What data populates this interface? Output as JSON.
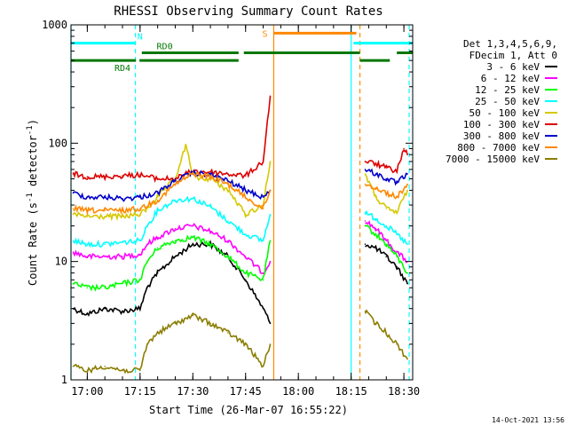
{
  "chart_data": {
    "type": "line",
    "title": "RHESSI Observing Summary Count Rates",
    "xlabel": "Start Time (26-Mar-07 16:55:22)",
    "ylabel_main": "Count Rate (s",
    "ylabel_sup1": "-1",
    "ylabel_mid": " detector",
    "ylabel_sup2": "-1",
    "ylabel_end": ")",
    "footer": "14-Oct-2021 13:56",
    "y_scale": "log",
    "ylim": [
      1,
      1000
    ],
    "xlim": [
      "16:55:22",
      "18:32:30"
    ],
    "x_ticks": [
      "17:00",
      "17:15",
      "17:30",
      "17:45",
      "18:00",
      "18:15",
      "18:30"
    ],
    "y_ticks": [
      "1",
      "10",
      "100",
      "1000"
    ],
    "legend": {
      "header": [
        "Det 1,3,4,5,6,9,",
        "FDecim 1, Att 0"
      ],
      "entries": [
        {
          "label": "3 - 6 keV",
          "color": "#000000"
        },
        {
          "label": "6 - 12 keV",
          "color": "#ff00ff"
        },
        {
          "label": "12 - 25 keV",
          "color": "#00ff00"
        },
        {
          "label": "25 - 50 keV",
          "color": "#00ffff"
        },
        {
          "label": "50 - 100 keV",
          "color": "#d6c800"
        },
        {
          "label": "100 - 300 keV",
          "color": "#dd0000"
        },
        {
          "label": "300 - 800 keV",
          "color": "#0000cc"
        },
        {
          "label": "800 - 7000 keV",
          "color": "#ff8800"
        },
        {
          "label": "7000 - 15000 keV",
          "color": "#8b7d00"
        }
      ]
    },
    "flags": [
      {
        "label": "N",
        "color": "#00ffff",
        "level": 700,
        "intervals": [
          [
            "16:55:22",
            "17:13:40"
          ],
          [
            "18:15:40",
            "18:32:30"
          ]
        ]
      },
      {
        "label": "RD0",
        "color": "#007700",
        "level": 580,
        "intervals": [
          [
            "17:15:30",
            "17:43:00"
          ],
          [
            "17:44:30",
            "18:17:30"
          ],
          [
            "18:28:00",
            "18:32:30"
          ]
        ]
      },
      {
        "label": "RD4",
        "color": "#007700",
        "level": 500,
        "intervals": [
          [
            "16:55:22",
            "17:13:50"
          ],
          [
            "17:14:50",
            "17:43:00"
          ],
          [
            "18:17:30",
            "18:26:00"
          ]
        ]
      },
      {
        "label": "S",
        "color": "#ff8800",
        "level": 850,
        "intervals": [
          [
            "17:53:00",
            "18:16:30"
          ]
        ]
      }
    ],
    "events": [
      {
        "time": "16:55:22",
        "color": "#00ffff",
        "style": "solid"
      },
      {
        "time": "17:13:40",
        "color": "#00ffff",
        "style": "dashed"
      },
      {
        "time": "17:53:00",
        "color": "#ff8800",
        "style": "solid"
      },
      {
        "time": "18:15:00",
        "color": "#00ffff",
        "style": "solid"
      },
      {
        "time": "18:17:30",
        "color": "#ff8800",
        "style": "dashed"
      },
      {
        "time": "18:31:30",
        "color": "#00ffff",
        "style": "dashed"
      }
    ],
    "data_gap": [
      "17:53:00",
      "18:17:30"
    ],
    "series": [
      {
        "name": "3 - 6 keV",
        "color": "#000000",
        "x": [
          "16:56",
          "17:00",
          "17:05",
          "17:10",
          "17:15",
          "17:17",
          "17:20",
          "17:25",
          "17:30",
          "17:35",
          "17:40",
          "17:45",
          "17:50",
          "17:52",
          "18:19",
          "18:22",
          "18:25",
          "18:28",
          "18:31"
        ],
        "y": [
          4,
          3.6,
          4,
          3.8,
          4,
          6,
          8,
          11,
          14,
          14,
          11,
          7,
          4,
          3,
          14,
          13,
          11,
          9,
          6.5
        ]
      },
      {
        "name": "6 - 12 keV",
        "color": "#ff00ff",
        "x": [
          "16:56",
          "17:00",
          "17:05",
          "17:10",
          "17:15",
          "17:17",
          "17:20",
          "17:25",
          "17:30",
          "17:35",
          "17:40",
          "17:45",
          "17:50",
          "17:52",
          "18:19",
          "18:22",
          "18:25",
          "18:28",
          "18:31"
        ],
        "y": [
          12,
          11,
          11,
          11,
          11.5,
          14,
          16,
          19,
          20,
          18,
          15,
          11,
          8,
          10,
          22,
          19,
          15,
          12,
          10
        ]
      },
      {
        "name": "12 - 25 keV",
        "color": "#00ff00",
        "x": [
          "16:56",
          "17:00",
          "17:05",
          "17:10",
          "17:15",
          "17:17",
          "17:20",
          "17:25",
          "17:30",
          "17:35",
          "17:40",
          "17:45",
          "17:50",
          "17:52",
          "18:19",
          "18:22",
          "18:25",
          "18:28",
          "18:31"
        ],
        "y": [
          6.5,
          6,
          6,
          6.5,
          7,
          10,
          13,
          15,
          16,
          14,
          11,
          8,
          7,
          15,
          20,
          17,
          14,
          11,
          8
        ]
      },
      {
        "name": "25 - 50 keV",
        "color": "#00ffff",
        "x": [
          "16:56",
          "17:00",
          "17:05",
          "17:10",
          "17:15",
          "17:17",
          "17:20",
          "17:25",
          "17:30",
          "17:35",
          "17:40",
          "17:45",
          "17:50",
          "17:52",
          "18:19",
          "18:22",
          "18:25",
          "18:28",
          "18:31"
        ],
        "y": [
          15,
          14,
          14,
          14.5,
          15,
          20,
          27,
          33,
          34,
          29,
          22,
          17,
          15,
          25,
          26,
          23,
          20,
          17,
          14
        ]
      },
      {
        "name": "50 - 100 keV",
        "color": "#d6c800",
        "x": [
          "16:56",
          "17:00",
          "17:05",
          "17:10",
          "17:15",
          "17:17",
          "17:20",
          "17:25",
          "17:28",
          "17:30",
          "17:32",
          "17:35",
          "17:40",
          "17:45",
          "17:50",
          "17:52",
          "18:19",
          "18:22",
          "18:25",
          "18:28",
          "18:31"
        ],
        "y": [
          25,
          24,
          24,
          24,
          25,
          28,
          35,
          50,
          95,
          55,
          50,
          50,
          40,
          25,
          30,
          70,
          55,
          35,
          28,
          26,
          40
        ]
      },
      {
        "name": "100 - 300 keV",
        "color": "#dd0000",
        "x": [
          "16:56",
          "17:00",
          "17:05",
          "17:10",
          "17:15",
          "17:20",
          "17:25",
          "17:30",
          "17:35",
          "17:40",
          "17:45",
          "17:50",
          "17:52",
          "18:19",
          "18:22",
          "18:25",
          "18:28",
          "18:30",
          "18:31"
        ],
        "y": [
          55,
          52,
          52,
          53,
          54,
          50,
          50,
          58,
          57,
          55,
          53,
          70,
          250,
          70,
          67,
          62,
          58,
          90,
          80
        ]
      },
      {
        "name": "300 - 800 keV",
        "color": "#0000cc",
        "x": [
          "16:56",
          "17:00",
          "17:05",
          "17:10",
          "17:15",
          "17:20",
          "17:25",
          "17:30",
          "17:35",
          "17:40",
          "17:45",
          "17:50",
          "17:52",
          "18:19",
          "18:22",
          "18:25",
          "18:28",
          "18:31"
        ],
        "y": [
          38,
          35,
          35,
          34,
          35,
          38,
          48,
          56,
          54,
          48,
          40,
          35,
          40,
          60,
          55,
          50,
          46,
          55
        ]
      },
      {
        "name": "800 - 7000 keV",
        "color": "#ff8800",
        "x": [
          "16:56",
          "17:00",
          "17:05",
          "17:10",
          "17:15",
          "17:20",
          "17:25",
          "17:30",
          "17:35",
          "17:40",
          "17:45",
          "17:50",
          "17:52",
          "18:19",
          "18:22",
          "18:25",
          "18:28",
          "18:31"
        ],
        "y": [
          28,
          27,
          27,
          27,
          28,
          33,
          45,
          55,
          52,
          45,
          35,
          28,
          40,
          45,
          42,
          38,
          35,
          45
        ]
      },
      {
        "name": "7000 - 15000 keV",
        "color": "#8b7d00",
        "x": [
          "16:56",
          "17:00",
          "17:05",
          "17:10",
          "17:15",
          "17:17",
          "17:20",
          "17:25",
          "17:30",
          "17:35",
          "17:40",
          "17:45",
          "17:50",
          "17:52",
          "18:19",
          "18:22",
          "18:25",
          "18:28",
          "18:31"
        ],
        "y": [
          1.3,
          1.2,
          1.3,
          1.2,
          1.2,
          2,
          2.5,
          3,
          3.5,
          3,
          2.5,
          2,
          1.3,
          2,
          3.8,
          3,
          2.5,
          2,
          1.5
        ]
      }
    ]
  }
}
